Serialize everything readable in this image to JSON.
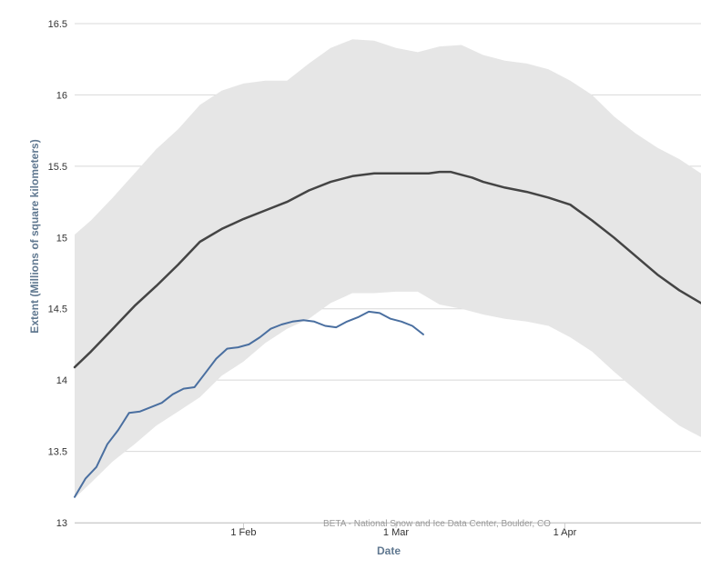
{
  "chart_data": {
    "type": "line",
    "title": "",
    "xlabel": "Date",
    "ylabel": "Extent (Millions of square kilometers)",
    "credit": "BETA - National Snow and Ice Data Center, Boulder, CO",
    "x_ticks": [
      {
        "label": "1 Feb",
        "day": 32
      },
      {
        "label": "1 Mar",
        "day": 60
      },
      {
        "label": "1 Apr",
        "day": 91
      }
    ],
    "xlim": [
      1,
      116
    ],
    "y_ticks": [
      13,
      13.5,
      14,
      14.5,
      15,
      15.5,
      16,
      16.5
    ],
    "ylim": [
      13,
      16.5
    ],
    "grid": true,
    "legend": "none",
    "colors": {
      "range": "#e6e6e6",
      "median": "#444444",
      "current": "#4a6fa0",
      "grid": "#d8d8d8",
      "axis": "#cccccc"
    },
    "range_band": {
      "x": [
        1,
        4,
        8,
        12,
        16,
        20,
        24,
        28,
        32,
        36,
        40,
        44,
        48,
        52,
        56,
        60,
        64,
        68,
        72,
        76,
        80,
        84,
        88,
        92,
        96,
        100,
        104,
        108,
        112,
        116
      ],
      "upper": [
        15.02,
        15.12,
        15.28,
        15.45,
        15.62,
        15.76,
        15.93,
        16.03,
        16.08,
        16.1,
        16.1,
        16.22,
        16.33,
        16.39,
        16.38,
        16.33,
        16.3,
        16.34,
        16.35,
        16.28,
        16.24,
        16.22,
        16.18,
        16.1,
        16.0,
        15.85,
        15.73,
        15.63,
        15.55,
        15.45
      ],
      "lower": [
        13.17,
        13.28,
        13.43,
        13.55,
        13.68,
        13.78,
        13.88,
        14.03,
        14.13,
        14.26,
        14.36,
        14.43,
        14.54,
        14.61,
        14.61,
        14.62,
        14.62,
        14.53,
        14.5,
        14.46,
        14.43,
        14.41,
        14.38,
        14.3,
        14.2,
        14.06,
        13.93,
        13.8,
        13.68,
        13.6
      ]
    },
    "series": [
      {
        "x": [
          1,
          4,
          8,
          12,
          16,
          20,
          24,
          28,
          32,
          36,
          40,
          44,
          48,
          52,
          56,
          60,
          62,
          64,
          66,
          68,
          70,
          72,
          74,
          76,
          80,
          84,
          88,
          92,
          96,
          100,
          104,
          108,
          112,
          116
        ],
        "values": [
          14.09,
          14.2,
          14.36,
          14.52,
          14.66,
          14.81,
          14.97,
          15.06,
          15.13,
          15.19,
          15.25,
          15.33,
          15.39,
          15.43,
          15.45,
          15.45,
          15.45,
          15.45,
          15.45,
          15.46,
          15.46,
          15.44,
          15.42,
          15.39,
          15.35,
          15.32,
          15.28,
          15.23,
          15.12,
          15.0,
          14.87,
          14.74,
          14.63,
          14.54
        ]
      },
      {
        "x": [
          1,
          3,
          5,
          7,
          9,
          11,
          13,
          15,
          17,
          19,
          21,
          23,
          25,
          27,
          29,
          31,
          33,
          35,
          37,
          39,
          41,
          43,
          45,
          47,
          49,
          51,
          53,
          55,
          57,
          59,
          61,
          63,
          65
        ],
        "values": [
          13.18,
          13.31,
          13.39,
          13.55,
          13.65,
          13.77,
          13.78,
          13.81,
          13.84,
          13.9,
          13.94,
          13.95,
          14.05,
          14.15,
          14.22,
          14.23,
          14.25,
          14.3,
          14.36,
          14.39,
          14.41,
          14.42,
          14.41,
          14.38,
          14.37,
          14.41,
          14.44,
          14.48,
          14.47,
          14.43,
          14.41,
          14.38,
          14.32
        ]
      }
    ]
  }
}
